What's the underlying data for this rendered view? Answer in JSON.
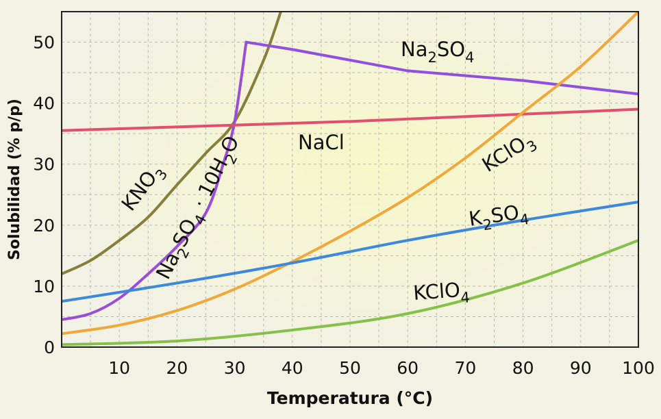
{
  "chart_data": {
    "type": "line",
    "xlabel": "Temperatura (°C)",
    "ylabel": "Solubilidad (% p/p)",
    "xlim": [
      0,
      100
    ],
    "ylim": [
      0,
      55
    ],
    "xticks": [
      10,
      20,
      30,
      40,
      50,
      60,
      70,
      80,
      90,
      100
    ],
    "yticks": [
      0,
      10,
      20,
      30,
      40,
      50
    ],
    "grid": true,
    "series": [
      {
        "name": "KNO3",
        "display": {
          "base": "KNO",
          "sub": "3"
        },
        "color": "#857f3a",
        "points": [
          [
            0,
            12
          ],
          [
            5,
            14.2
          ],
          [
            10,
            17.5
          ],
          [
            15,
            21.3
          ],
          [
            20,
            26.6
          ],
          [
            25,
            31.8
          ],
          [
            30,
            37
          ],
          [
            35,
            47
          ],
          [
            38,
            55
          ]
        ]
      },
      {
        "name": "Na2SO4 · 10H2O",
        "display": {
          "parts": [
            [
              "Na",
              ""
            ],
            [
              "2",
              "sub"
            ],
            [
              "SO",
              ""
            ],
            [
              "4",
              "sub"
            ],
            [
              " · 10H",
              ""
            ],
            [
              "2",
              "sub"
            ],
            [
              "O",
              ""
            ]
          ]
        },
        "color": "#9a4ed8",
        "points": [
          [
            0,
            4.5
          ],
          [
            5,
            5.5
          ],
          [
            10,
            8
          ],
          [
            15,
            12
          ],
          [
            20,
            16.5
          ],
          [
            25,
            22
          ],
          [
            28,
            30
          ],
          [
            30,
            37
          ],
          [
            32,
            50
          ]
        ]
      },
      {
        "name": "Na2SO4",
        "display": {
          "parts": [
            [
              "Na",
              ""
            ],
            [
              "2",
              "sub"
            ],
            [
              "SO",
              ""
            ],
            [
              "4",
              "sub"
            ]
          ]
        },
        "color": "#8f4fe0",
        "points": [
          [
            32,
            50
          ],
          [
            40,
            48.8
          ],
          [
            60,
            45.3
          ],
          [
            80,
            43.7
          ],
          [
            100,
            41.5
          ]
        ]
      },
      {
        "name": "NaCl",
        "display": {
          "parts": [
            [
              "NaCl",
              ""
            ]
          ]
        },
        "color": "#e24f6e",
        "points": [
          [
            0,
            35.5
          ],
          [
            50,
            37
          ],
          [
            100,
            39
          ]
        ]
      },
      {
        "name": "KClO3",
        "display": {
          "parts": [
            [
              "KClO",
              ""
            ],
            [
              "3",
              "sub"
            ]
          ]
        },
        "color": "#f0a83a",
        "points": [
          [
            0,
            2.2
          ],
          [
            10,
            3.6
          ],
          [
            20,
            6
          ],
          [
            30,
            9.5
          ],
          [
            40,
            14
          ],
          [
            50,
            19
          ],
          [
            60,
            24.5
          ],
          [
            70,
            31
          ],
          [
            80,
            38.5
          ],
          [
            90,
            46
          ],
          [
            100,
            55
          ]
        ]
      },
      {
        "name": "K2SO4",
        "display": {
          "parts": [
            [
              "K",
              ""
            ],
            [
              "2",
              "sub"
            ],
            [
              "SO",
              ""
            ],
            [
              "4",
              "sub"
            ]
          ]
        },
        "color": "#3b88dd",
        "points": [
          [
            0,
            7.5
          ],
          [
            20,
            10.5
          ],
          [
            40,
            13.8
          ],
          [
            60,
            17.5
          ],
          [
            80,
            20.8
          ],
          [
            100,
            23.8
          ]
        ]
      },
      {
        "name": "KClO4",
        "display": {
          "parts": [
            [
              "KClO",
              ""
            ],
            [
              "4",
              "sub"
            ]
          ]
        },
        "color": "#86c048",
        "points": [
          [
            0,
            0.4
          ],
          [
            20,
            1
          ],
          [
            40,
            2.8
          ],
          [
            60,
            5.5
          ],
          [
            80,
            10.5
          ],
          [
            100,
            17.5
          ]
        ]
      }
    ]
  }
}
